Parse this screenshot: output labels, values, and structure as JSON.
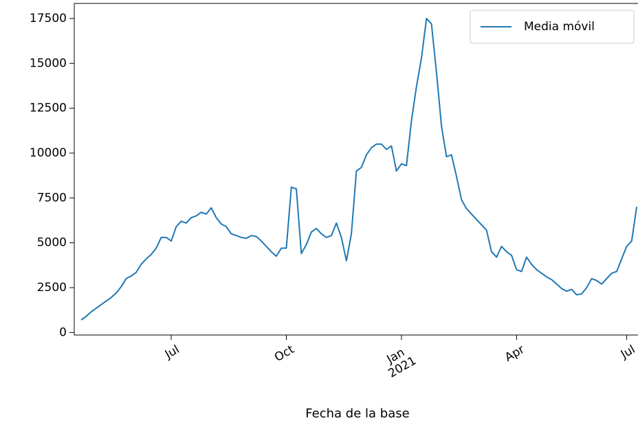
{
  "chart_data": {
    "type": "line",
    "x_label": "Fecha de la base",
    "categories": [
      null,
      null,
      null,
      null,
      null,
      null,
      null,
      null,
      null,
      null,
      null,
      null,
      null,
      null,
      null,
      null,
      null,
      null,
      "Jul",
      null,
      null,
      null,
      null,
      null,
      null,
      null,
      null,
      null,
      null,
      null,
      null,
      null,
      null,
      null,
      null,
      null,
      null,
      null,
      null,
      null,
      null,
      "Oct",
      null,
      null,
      null,
      null,
      null,
      null,
      null,
      null,
      null,
      null,
      null,
      null,
      null,
      null,
      null,
      null,
      null,
      null,
      null,
      null,
      null,
      null,
      "Jan\n2021",
      null,
      null,
      null,
      null,
      null,
      null,
      null,
      null,
      null,
      null,
      null,
      null,
      null,
      null,
      null,
      null,
      null,
      null,
      null,
      null,
      null,
      null,
      "Apr",
      null,
      null,
      null,
      null,
      null,
      null,
      null,
      null,
      null,
      null,
      null,
      null,
      null,
      null,
      null,
      null,
      null,
      null,
      null,
      null,
      null,
      "Jul",
      null,
      null
    ],
    "series": [
      {
        "name": "Media móvil",
        "color": "#1f77b4",
        "values": [
          700,
          900,
          1150,
          1350,
          1550,
          1750,
          1950,
          2200,
          2550,
          3000,
          3150,
          3350,
          3800,
          4100,
          4350,
          4700,
          5300,
          5300,
          5100,
          5900,
          6200,
          6100,
          6400,
          6500,
          6700,
          6600,
          6950,
          6400,
          6050,
          5900,
          5500,
          5400,
          5300,
          5250,
          5400,
          5350,
          5100,
          4800,
          4500,
          4250,
          4700,
          4700,
          8100,
          8000,
          4400,
          4900,
          5600,
          5800,
          5500,
          5300,
          5400,
          6100,
          5300,
          4000,
          5500,
          9000,
          9200,
          9900,
          10300,
          10500,
          10500,
          10200,
          10400,
          9000,
          9400,
          9300,
          11800,
          13700,
          15300,
          17500,
          17200,
          14500,
          11500,
          9800,
          9900,
          8700,
          7400,
          6900,
          6600,
          6300,
          6000,
          5700,
          4500,
          4200,
          4800,
          4500,
          4300,
          3500,
          3400,
          4200,
          3800,
          3500,
          3300,
          3100,
          2950,
          2700,
          2450,
          2300,
          2400,
          2100,
          2150,
          2500,
          3000,
          2900,
          2700,
          3000,
          3300,
          3400,
          4100,
          4800,
          5100,
          7000
        ]
      }
    ],
    "ylim": [
      -140,
      18340
    ],
    "yticks": [
      0,
      2500,
      5000,
      7500,
      10000,
      12500,
      15000,
      17500
    ],
    "legend": "upper right"
  }
}
